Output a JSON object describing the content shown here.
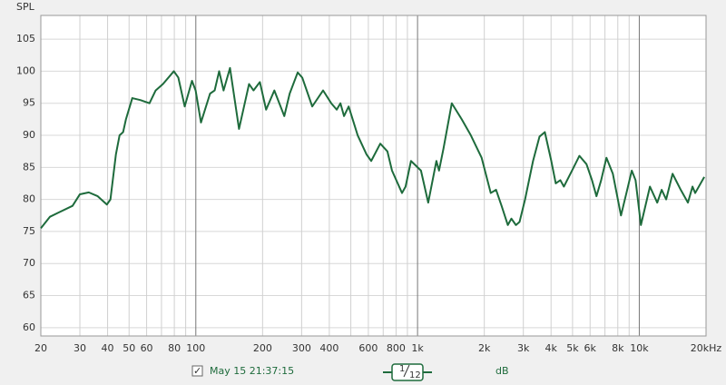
{
  "chart_data": {
    "type": "line",
    "y_axis_label": "SPL",
    "xscale": "log",
    "xlim": [
      20,
      20000
    ],
    "ylim": [
      58.7,
      108.7
    ],
    "yticks": [
      60,
      65,
      70,
      75,
      80,
      85,
      90,
      95,
      100,
      105
    ],
    "xticks": [
      20,
      30,
      40,
      50,
      60,
      80,
      100,
      200,
      300,
      400,
      600,
      800,
      {
        "value": 1000,
        "label": "1k"
      },
      {
        "value": 2000,
        "label": "2k"
      },
      {
        "value": 3000,
        "label": "3k"
      },
      {
        "value": 4000,
        "label": "4k"
      },
      {
        "value": 5000,
        "label": "5k"
      },
      {
        "value": 6000,
        "label": "6k"
      },
      {
        "value": 8000,
        "label": "8k"
      },
      {
        "value": 10000,
        "label": "10k"
      },
      {
        "value": 20000,
        "label": "20kHz"
      }
    ],
    "xminor": [
      70,
      90,
      500,
      700,
      900,
      7000,
      9000
    ],
    "grid": true,
    "x": [
      20,
      22,
      24.2,
      27.8,
      30,
      32.9,
      36.1,
      39.7,
      41.2,
      43.6,
      45.3,
      47,
      48.4,
      51.7,
      56.2,
      61.8,
      65.9,
      71.1,
      79.6,
      83.4,
      89.1,
      96.1,
      99.8,
      105.5,
      115.9,
      121.6,
      127.4,
      133.4,
      142.6,
      156.6,
      173.8,
      182,
      194.5,
      207.5,
      226,
      250.6,
      265,
      288,
      302,
      335,
      375,
      408,
      432,
      449,
      466,
      489,
      537,
      589,
      618,
      679,
      731,
      767,
      851,
      883,
      934,
      1036,
      1117,
      1216,
      1250,
      1310,
      1427,
      1582,
      1739,
      1945,
      2138,
      2260,
      2393,
      2553,
      2650,
      2778,
      2884,
      3054,
      3318,
      3549,
      3750,
      4010,
      4200,
      4405,
      4570,
      4975,
      5370,
      5780,
      6120,
      6410,
      6730,
      7110,
      7600,
      8270,
      8750,
      9250,
      9620,
      10170,
      11170,
      12050,
      12620,
      13220,
      14130,
      15380,
      16570,
      17380,
      17870,
      19640
    ],
    "series": [
      {
        "name": "May 15 21:37:15",
        "color": "#1e6b3c",
        "values": [
          75.5,
          77.3,
          78,
          79,
          80.8,
          81.1,
          80.5,
          79.2,
          80,
          87,
          90,
          90.5,
          92.5,
          95.8,
          95.5,
          95,
          97,
          98,
          100,
          99,
          94.5,
          98.5,
          97,
          92,
          96.5,
          97,
          100,
          97,
          100.5,
          91,
          98,
          97,
          98.3,
          94,
          97,
          93,
          96.5,
          99.8,
          99,
          94.5,
          97,
          95,
          94,
          95,
          93,
          94.5,
          90,
          87,
          86,
          88.7,
          87.5,
          84.5,
          81,
          82,
          86,
          84.5,
          79.5,
          86,
          84.5,
          88,
          95,
          92.5,
          90,
          86.5,
          81,
          81.5,
          79,
          76,
          77,
          76,
          76.5,
          80,
          86,
          89.8,
          90.5,
          86,
          82.5,
          83,
          82,
          84.5,
          86.8,
          85.5,
          83,
          80.5,
          83,
          86.5,
          84,
          77.5,
          81,
          84.5,
          83,
          76,
          82,
          79.5,
          81.5,
          80,
          84,
          81.5,
          79.5,
          82,
          81,
          83.5
        ]
      }
    ],
    "legend": {
      "checked": true,
      "smoothing_numerator": "1",
      "smoothing_denominator": "12",
      "unit": "dB"
    }
  }
}
